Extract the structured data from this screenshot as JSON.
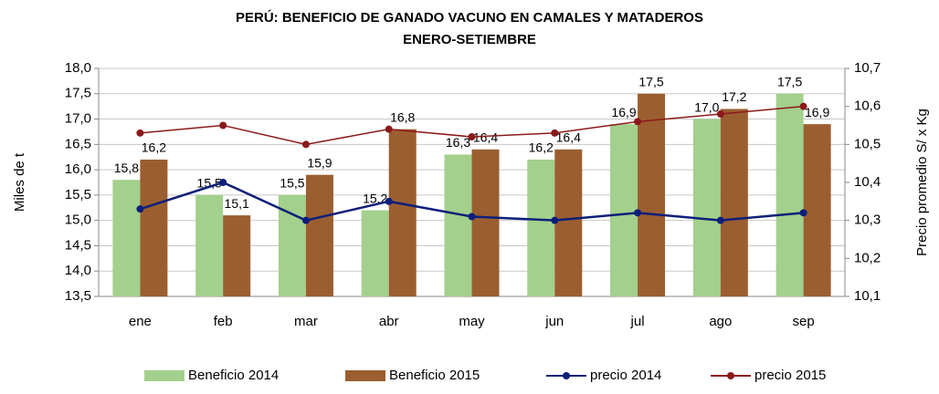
{
  "chart_data": {
    "type": "bar_line",
    "title": "PERÚ: BENEFICIO DE GANADO VACUNO EN CAMALES Y MATADEROS",
    "subtitle": "ENERO-SETIEMBRE",
    "y_label": "Miles de t",
    "y2_label": "Precio promedio S/ x Kg",
    "categories": [
      "ene",
      "feb",
      "mar",
      "abr",
      "may",
      "jun",
      "jul",
      "ago",
      "sep"
    ],
    "series": [
      {
        "name": "Beneficio 2014",
        "kind": "bar",
        "color": "#a3d08c",
        "values": [
          15.8,
          15.5,
          15.5,
          15.2,
          16.3,
          16.2,
          16.9,
          17.0,
          17.5
        ],
        "value_labels": [
          "15,8",
          "15,5",
          "15,5",
          "15,2",
          "16,3",
          "16,2",
          "16,9",
          "17,0",
          "17,5"
        ]
      },
      {
        "name": "Beneficio 2015",
        "kind": "bar",
        "color": "#9b5e30",
        "values": [
          16.2,
          15.1,
          15.9,
          16.8,
          16.4,
          16.4,
          17.5,
          17.2,
          16.9
        ],
        "value_labels": [
          "16,2",
          "15,1",
          "15,9",
          "16,8",
          "16,4",
          "16,4",
          "17,5",
          "17,2",
          "16,9"
        ]
      },
      {
        "name": "precio 2014",
        "kind": "line",
        "axis": "y2",
        "color": "#0d1f7a",
        "values": [
          10.33,
          10.4,
          10.3,
          10.35,
          10.31,
          10.3,
          10.32,
          10.3,
          10.32
        ]
      },
      {
        "name": "precio 2015",
        "kind": "line",
        "axis": "y2",
        "color": "#8b1a1a",
        "values": [
          10.53,
          10.55,
          10.5,
          10.54,
          10.52,
          10.53,
          10.56,
          10.58,
          10.6
        ]
      }
    ],
    "ylim": [
      13.5,
      18.0
    ],
    "yticks": [
      {
        "value": 13.5,
        "label": "13,5"
      },
      {
        "value": 14.0,
        "label": "14,0"
      },
      {
        "value": 14.5,
        "label": "14,5"
      },
      {
        "value": 15.0,
        "label": "15,0"
      },
      {
        "value": 15.5,
        "label": "15,5"
      },
      {
        "value": 16.0,
        "label": "16,0"
      },
      {
        "value": 16.5,
        "label": "16,5"
      },
      {
        "value": 17.0,
        "label": "17,0"
      },
      {
        "value": 17.5,
        "label": "17,5"
      },
      {
        "value": 18.0,
        "label": "18,0"
      }
    ],
    "y2lim": [
      10.1,
      10.7
    ],
    "y2ticks": [
      {
        "value": 10.1,
        "label": "10,1"
      },
      {
        "value": 10.2,
        "label": "10,2"
      },
      {
        "value": 10.3,
        "label": "10,3"
      },
      {
        "value": 10.4,
        "label": "10,4"
      },
      {
        "value": 10.5,
        "label": "10,5"
      },
      {
        "value": 10.6,
        "label": "10,6"
      },
      {
        "value": 10.7,
        "label": "10,7"
      }
    ],
    "grid": true,
    "legend": "bottom"
  }
}
